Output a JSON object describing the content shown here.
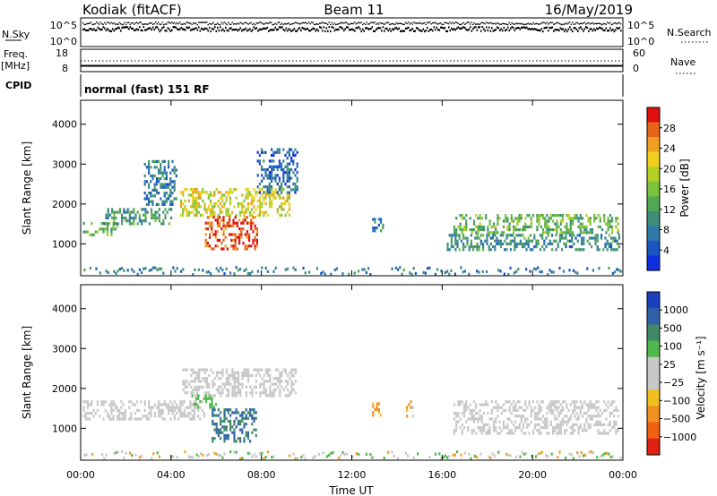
{
  "header": {
    "site": "Kodiak (fitACF)",
    "beam": "Beam 11",
    "date": "16/May/2019"
  },
  "top_panels": {
    "nsky": {
      "label": "N.Sky",
      "tick_top": "10^5",
      "tick_bottom": "10^0"
    },
    "nsearch": {
      "label": "N.Search",
      "tick_top": "10^5",
      "tick_bottom": "10^0"
    },
    "freq": {
      "label_line1": "Freq.",
      "label_line2": "[MHz]",
      "tick_top": "18",
      "tick_bottom": "8"
    },
    "nave": {
      "label": "Nave",
      "tick_top": "60",
      "tick_bottom": "0"
    },
    "cpid": {
      "label": "CPID",
      "program": "normal (fast) 151 RF"
    }
  },
  "chart_data": [
    {
      "type": "heatmap",
      "name": "power",
      "ylabel": "Slant Range [km]",
      "ylim": [
        200,
        4600
      ],
      "yticks": [
        "1000",
        "2000",
        "3000",
        "4000"
      ],
      "xlim": [
        0,
        24
      ],
      "xticks": [
        "00:00",
        "04:00",
        "08:00",
        "12:00",
        "16:00",
        "20:00",
        "00:00"
      ],
      "colorbar": {
        "label": "Power [dB]",
        "range": [
          0,
          32
        ],
        "ticks": [
          "4",
          "8",
          "12",
          "16",
          "20",
          "24",
          "28"
        ],
        "colors": [
          "#1030e0",
          "#1a56c2",
          "#2f7aa8",
          "#3f8f78",
          "#52a852",
          "#7cc23a",
          "#b6d026",
          "#f0d01c",
          "#f0a020",
          "#e86418",
          "#e01010"
        ]
      },
      "regions": [
        {
          "t0": 0.1,
          "t1": 1.6,
          "r0": 1250,
          "r1": 1550,
          "level": 14
        },
        {
          "t0": 1.0,
          "t1": 4.0,
          "r0": 1500,
          "r1": 1900,
          "level": 11
        },
        {
          "t0": 2.8,
          "t1": 4.2,
          "r0": 2000,
          "r1": 3100,
          "level": 8
        },
        {
          "t0": 4.4,
          "t1": 9.2,
          "r0": 1700,
          "r1": 2400,
          "level": 20
        },
        {
          "t0": 5.5,
          "t1": 7.8,
          "r0": 900,
          "r1": 1700,
          "level": 28
        },
        {
          "t0": 7.8,
          "t1": 9.6,
          "r0": 2300,
          "r1": 3400,
          "level": 6
        },
        {
          "t0": 12.9,
          "t1": 13.4,
          "r0": 1350,
          "r1": 1650,
          "level": 8
        },
        {
          "t0": 16.5,
          "t1": 23.8,
          "r0": 1300,
          "r1": 1750,
          "level": 14
        },
        {
          "t0": 16.2,
          "t1": 23.8,
          "r0": 850,
          "r1": 1250,
          "level": 10
        }
      ]
    },
    {
      "type": "heatmap",
      "name": "velocity",
      "ylabel": "Slant Range [km]",
      "ylim": [
        200,
        4600
      ],
      "yticks": [
        "1000",
        "2000",
        "3000",
        "4000"
      ],
      "xlim": [
        0,
        24
      ],
      "xticks": [
        "00:00",
        "04:00",
        "08:00",
        "12:00",
        "16:00",
        "20:00",
        "00:00"
      ],
      "xlabel": "Time UT",
      "colorbar": {
        "label": "Velocity [m s⁻¹]",
        "ticks": [
          "1000",
          "500",
          "100",
          "25",
          "−25",
          "−100",
          "−500",
          "−1000"
        ],
        "colors": [
          "#1b3fbf",
          "#2f62a8",
          "#3f8a68",
          "#4fb84a",
          "#c8c8c8",
          "#c8c8c8",
          "#f0c020",
          "#f09020",
          "#f06010",
          "#e02010"
        ]
      },
      "regions": [
        {
          "t0": 0.1,
          "t1": 5.5,
          "r0": 1250,
          "r1": 1700,
          "level": 0
        },
        {
          "t0": 4.5,
          "t1": 9.5,
          "r0": 1800,
          "r1": 2500,
          "level": 0
        },
        {
          "t0": 5.8,
          "t1": 7.8,
          "r0": 700,
          "r1": 1500,
          "level": 500
        },
        {
          "t0": 4.9,
          "t1": 6.0,
          "r0": 1500,
          "r1": 1850,
          "level": 50
        },
        {
          "t0": 12.9,
          "t1": 13.3,
          "r0": 1350,
          "r1": 1650,
          "level": -200
        },
        {
          "t0": 14.4,
          "t1": 14.7,
          "r0": 1300,
          "r1": 1700,
          "level": -200
        },
        {
          "t0": 16.5,
          "t1": 23.8,
          "r0": 850,
          "r1": 1700,
          "level": 0
        }
      ]
    }
  ],
  "axis_title": "Time UT"
}
